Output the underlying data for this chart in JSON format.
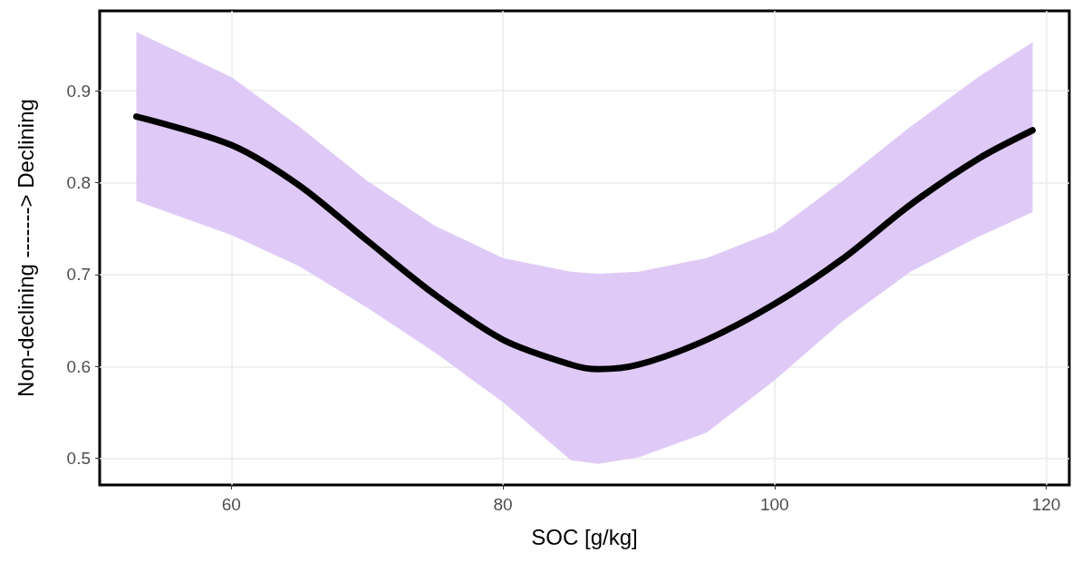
{
  "chart_data": {
    "type": "line",
    "xlabel": "SOC [g/kg]",
    "ylabel": "Non-declining -------> Declining",
    "x": [
      53,
      60,
      65,
      70,
      75,
      80,
      85,
      87,
      90,
      95,
      100,
      105,
      110,
      115,
      119
    ],
    "series": [
      {
        "color": "#000000",
        "values": [
          0.872,
          0.841,
          0.797,
          0.737,
          0.678,
          0.629,
          0.602,
          0.597,
          0.602,
          0.629,
          0.668,
          0.717,
          0.776,
          0.826,
          0.857
        ],
        "lower": [
          0.78,
          0.743,
          0.709,
          0.664,
          0.615,
          0.561,
          0.498,
          0.494,
          0.501,
          0.528,
          0.585,
          0.649,
          0.703,
          0.741,
          0.768
        ],
        "upper": [
          0.964,
          0.915,
          0.861,
          0.802,
          0.753,
          0.718,
          0.703,
          0.701,
          0.703,
          0.718,
          0.747,
          0.802,
          0.861,
          0.915,
          0.953
        ]
      }
    ],
    "xlim": [
      50.3,
      121.7
    ],
    "xticks": [
      60,
      80,
      100,
      120
    ],
    "ylim": [
      0.471,
      0.987
    ],
    "yticks": [
      0.5,
      0.6,
      0.7,
      0.8,
      0.9
    ],
    "grid": true,
    "marker": "none",
    "line_style": "solid"
  }
}
